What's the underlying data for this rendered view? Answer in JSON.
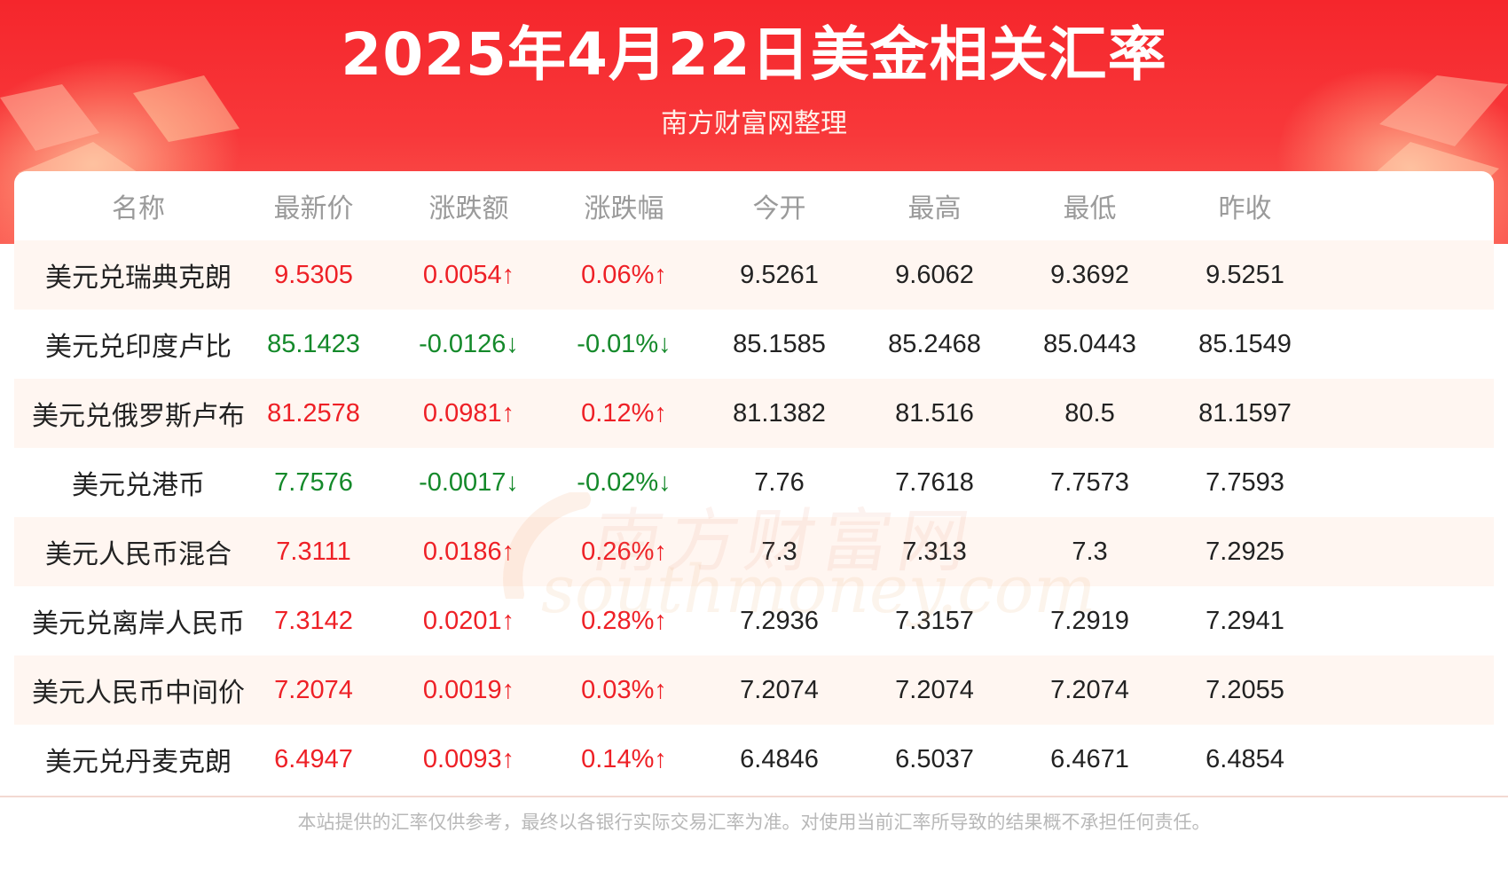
{
  "header": {
    "title": "2025年4月22日美金相关汇率",
    "subtitle": "南方财富网整理"
  },
  "colors": {
    "header_red": "#f5262c",
    "up_red": "#ee2026",
    "down_green": "#14892a",
    "row_shade": "#fff6f1"
  },
  "table": {
    "columns": [
      "名称",
      "最新价",
      "涨跌额",
      "涨跌幅",
      "今开",
      "最高",
      "最低",
      "昨收"
    ],
    "rows": [
      {
        "name": "美元兑瑞典克朗",
        "latest": "9.5305",
        "change": "0.0054↑",
        "pct": "0.06%↑",
        "open": "9.5261",
        "high": "9.6062",
        "low": "9.3692",
        "prev": "9.5251",
        "dir": "up"
      },
      {
        "name": "美元兑印度卢比",
        "latest": "85.1423",
        "change": "-0.0126↓",
        "pct": "-0.01%↓",
        "open": "85.1585",
        "high": "85.2468",
        "low": "85.0443",
        "prev": "85.1549",
        "dir": "down"
      },
      {
        "name": "美元兑俄罗斯卢布",
        "latest": "81.2578",
        "change": "0.0981↑",
        "pct": "0.12%↑",
        "open": "81.1382",
        "high": "81.516",
        "low": "80.5",
        "prev": "81.1597",
        "dir": "up"
      },
      {
        "name": "美元兑港币",
        "latest": "7.7576",
        "change": "-0.0017↓",
        "pct": "-0.02%↓",
        "open": "7.76",
        "high": "7.7618",
        "low": "7.7573",
        "prev": "7.7593",
        "dir": "down"
      },
      {
        "name": "美元人民币混合",
        "latest": "7.3111",
        "change": "0.0186↑",
        "pct": "0.26%↑",
        "open": "7.3",
        "high": "7.313",
        "low": "7.3",
        "prev": "7.2925",
        "dir": "up"
      },
      {
        "name": "美元兑离岸人民币",
        "latest": "7.3142",
        "change": "0.0201↑",
        "pct": "0.28%↑",
        "open": "7.2936",
        "high": "7.3157",
        "low": "7.2919",
        "prev": "7.2941",
        "dir": "up"
      },
      {
        "name": "美元人民币中间价",
        "latest": "7.2074",
        "change": "0.0019↑",
        "pct": "0.03%↑",
        "open": "7.2074",
        "high": "7.2074",
        "low": "7.2074",
        "prev": "7.2055",
        "dir": "up"
      },
      {
        "name": "美元兑丹麦克朗",
        "latest": "6.4947",
        "change": "0.0093↑",
        "pct": "0.14%↑",
        "open": "6.4846",
        "high": "6.5037",
        "low": "6.4671",
        "prev": "6.4854",
        "dir": "up"
      }
    ]
  },
  "watermark": {
    "cn": "南方财富网",
    "en": "southmoney.com"
  },
  "footer": {
    "disclaimer": "本站提供的汇率仅供参考，最终以各银行实际交易汇率为准。对使用当前汇率所导致的结果概不承担任何责任。"
  }
}
